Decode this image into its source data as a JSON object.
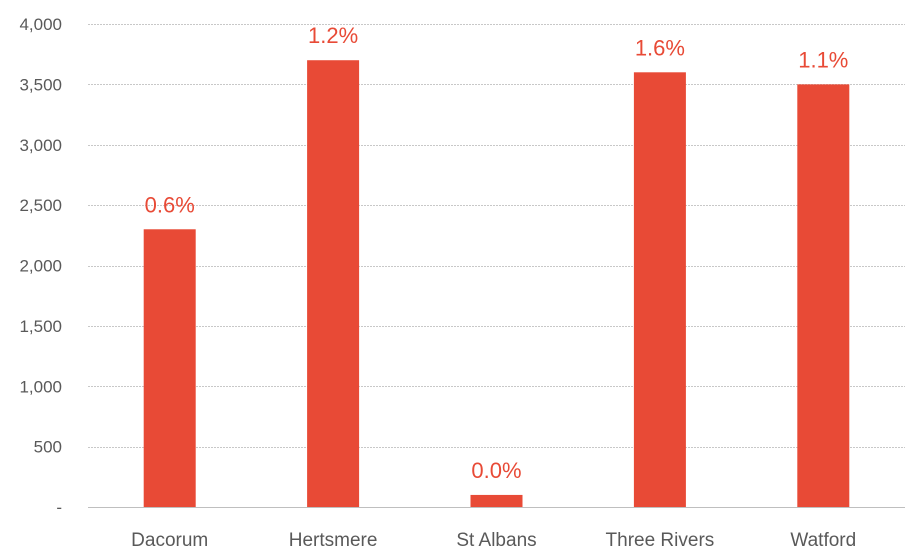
{
  "chart_data": {
    "type": "bar",
    "categories": [
      "Dacorum",
      "Hertsmere",
      "St Albans",
      "Three Rivers",
      "Watford"
    ],
    "values": [
      2300,
      3700,
      100,
      3600,
      3500
    ],
    "data_labels": [
      "0.6%",
      "1.2%",
      "0.0%",
      "1.6%",
      "1.1%"
    ],
    "ylim": [
      0,
      4000
    ],
    "yticks": [
      0,
      500,
      1000,
      1500,
      2000,
      2500,
      3000,
      3500,
      4000
    ],
    "ytick_labels": [
      "-",
      "500",
      "1,000",
      "1,500",
      "2,000",
      "2,500",
      "3,000",
      "3,500",
      "4,000"
    ],
    "grid": true,
    "legend": "none",
    "title": "",
    "xlabel": "",
    "ylabel": "",
    "colors": {
      "bar": "#e84a36",
      "data_label": "#e84a36",
      "grid": "#c8c8c8",
      "tick_text": "#595959"
    }
  }
}
